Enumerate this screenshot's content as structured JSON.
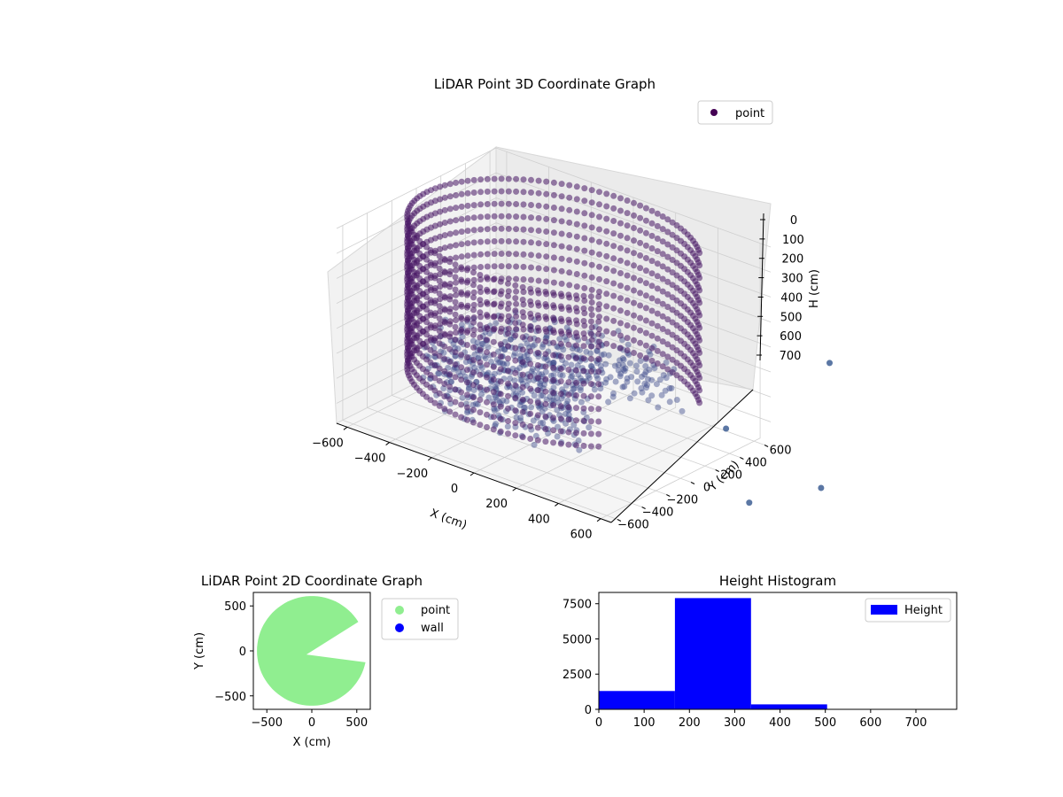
{
  "chart_data": [
    {
      "type": "scatter3d",
      "title": "LiDAR Point 3D Coordinate Graph",
      "xlabel": "X (cm)",
      "ylabel": "Y (cm)",
      "zlabel": "H (cm)",
      "xlim": [
        -650,
        650
      ],
      "ylim": [
        -650,
        650
      ],
      "zlim": [
        0,
        780
      ],
      "z_inverted": true,
      "x_ticks": [
        "−600",
        "−400",
        "−200",
        "0",
        "200",
        "400",
        "600"
      ],
      "y_ticks": [
        "−600",
        "−400",
        "−200",
        "0",
        "200",
        "400",
        "600"
      ],
      "z_ticks": [
        "0",
        "100",
        "200",
        "300",
        "400",
        "500",
        "600",
        "700"
      ],
      "legend": {
        "entries": [
          "point"
        ],
        "placement": "top-right"
      },
      "colors": {
        "wall": "#471564",
        "floor": "#3d4b8c",
        "outlier": "#3e5f94",
        "marker": "#440154"
      },
      "series": [
        {
          "name": "point",
          "wall_radius": 600,
          "wall_heights": [
            0,
            50,
            100,
            150,
            200,
            250,
            300,
            350,
            400,
            450,
            500,
            550,
            600
          ],
          "gap_angle_deg": [
            -40,
            35
          ],
          "outliers": [
            {
              "x": 900,
              "y": 700,
              "h": 400
            },
            {
              "x": 700,
              "y": 200,
              "h": 600
            },
            {
              "x": 1150,
              "y": 200,
              "h": 700
            },
            {
              "x": 1100,
              "y": -300,
              "h": 650
            }
          ]
        }
      ],
      "grid": true
    },
    {
      "type": "scatter",
      "title": "LiDAR Point 2D Coordinate Graph",
      "xlabel": "X (cm)",
      "ylabel": "Y (cm)",
      "xlim": [
        -650,
        650
      ],
      "ylim": [
        -650,
        650
      ],
      "x_ticks": [
        "−500",
        "0",
        "500"
      ],
      "y_ticks": [
        "−500",
        "0",
        "500"
      ],
      "legend": {
        "entries": [
          "point",
          "wall"
        ],
        "placement": "outside-right"
      },
      "colors": {
        "point": "#90ee90",
        "wall": "#0000ff"
      },
      "series": [
        {
          "name": "point",
          "radius": 610,
          "gap_angle_deg": [
            -10,
            32
          ],
          "notch_angle_deg": [
            12,
            20
          ]
        },
        {
          "name": "wall",
          "points": []
        }
      ]
    },
    {
      "type": "bar",
      "title": "Height Histogram",
      "xlim": [
        0,
        790
      ],
      "ylim": [
        0,
        8300
      ],
      "x_ticks": [
        "0",
        "100",
        "200",
        "300",
        "400",
        "500",
        "600",
        "700"
      ],
      "y_ticks": [
        "0",
        "2500",
        "5000",
        "7500"
      ],
      "legend": {
        "entries": [
          "Height"
        ],
        "placement": "top-right"
      },
      "colors": {
        "bar": "#0000ff"
      },
      "series": [
        {
          "name": "Height",
          "bins": [
            {
              "start": 0,
              "end": 168,
              "count": 1300
            },
            {
              "start": 168,
              "end": 336,
              "count": 7900
            },
            {
              "start": 336,
              "end": 504,
              "count": 350
            },
            {
              "start": 504,
              "end": 672,
              "count": 20
            },
            {
              "start": 672,
              "end": 790,
              "count": 5
            }
          ]
        }
      ]
    }
  ]
}
